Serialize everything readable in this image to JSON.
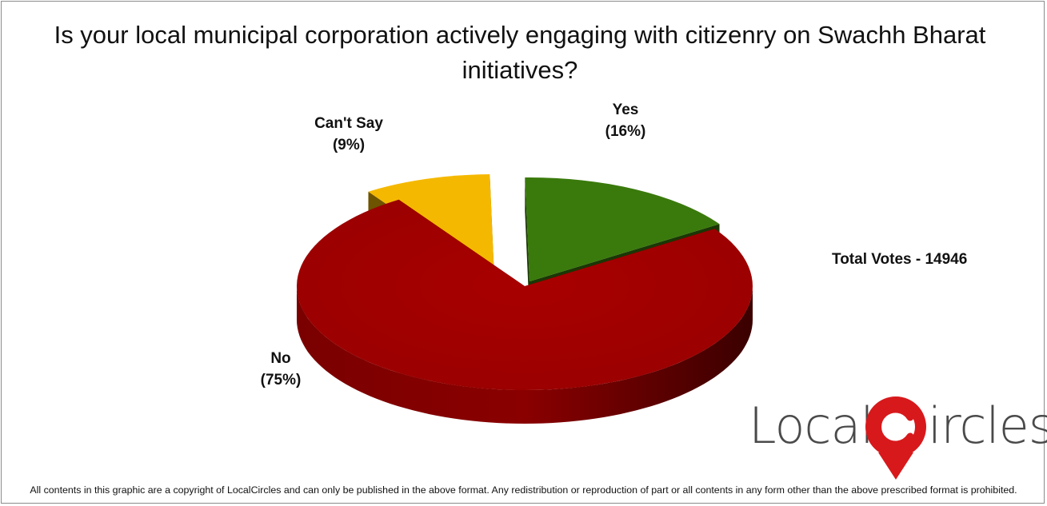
{
  "chart_data": {
    "type": "pie",
    "title": "Is your local municipal corporation actively engaging with citizenry on Swachh Bharat initiatives?",
    "slices": [
      {
        "label": "Yes",
        "percent_label": "(16%)",
        "value": 16,
        "color": "#3a7a0c"
      },
      {
        "label": "No",
        "percent_label": "(75%)",
        "value": 75,
        "color": "#a30000"
      },
      {
        "label": "Can't Say",
        "percent_label": "(9%)",
        "value": 9,
        "color": "#f5b800"
      }
    ],
    "style": "3d-exploded"
  },
  "annotation": {
    "total_votes": "Total Votes - 14946"
  },
  "logo": {
    "text": "LocalCircles",
    "pin_color": "#d7191c"
  },
  "footer": {
    "copyright": "All contents in this graphic are a copyright of LocalCircles and can only be published in the above format. Any redistribution or reproduction of part or all contents in any form other than the above prescribed format is prohibited."
  }
}
